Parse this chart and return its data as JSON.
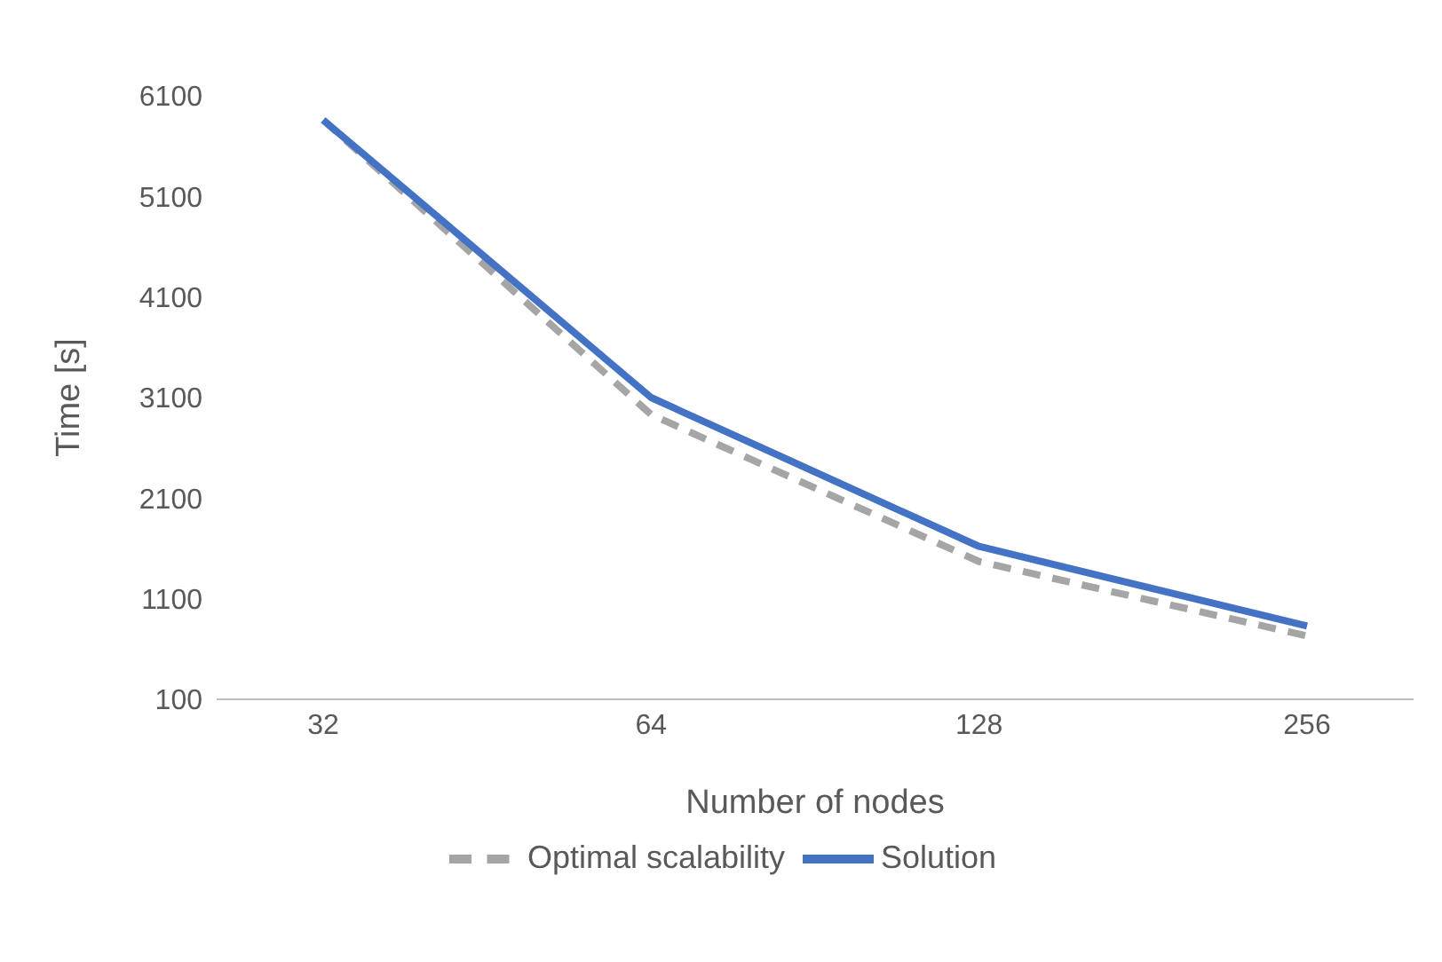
{
  "chart_data": {
    "type": "line",
    "xlabel": "Number of nodes",
    "ylabel": "Time [s]",
    "categories": [
      "32",
      "64",
      "128",
      "256"
    ],
    "series": [
      {
        "name": "Optimal scalability",
        "color": "#a5a5a5",
        "line_style": "dashed",
        "values": [
          5860,
          2930,
          1470,
          730
        ]
      },
      {
        "name": "Solution",
        "color": "#4472c4",
        "line_style": "solid",
        "values": [
          5860,
          3100,
          1620,
          830
        ]
      }
    ],
    "ylim": [
      100,
      6100
    ],
    "yticks": [
      100,
      1100,
      2100,
      3100,
      4100,
      5100,
      6100
    ],
    "grid": false,
    "legend": "bottom",
    "marker": "none"
  }
}
